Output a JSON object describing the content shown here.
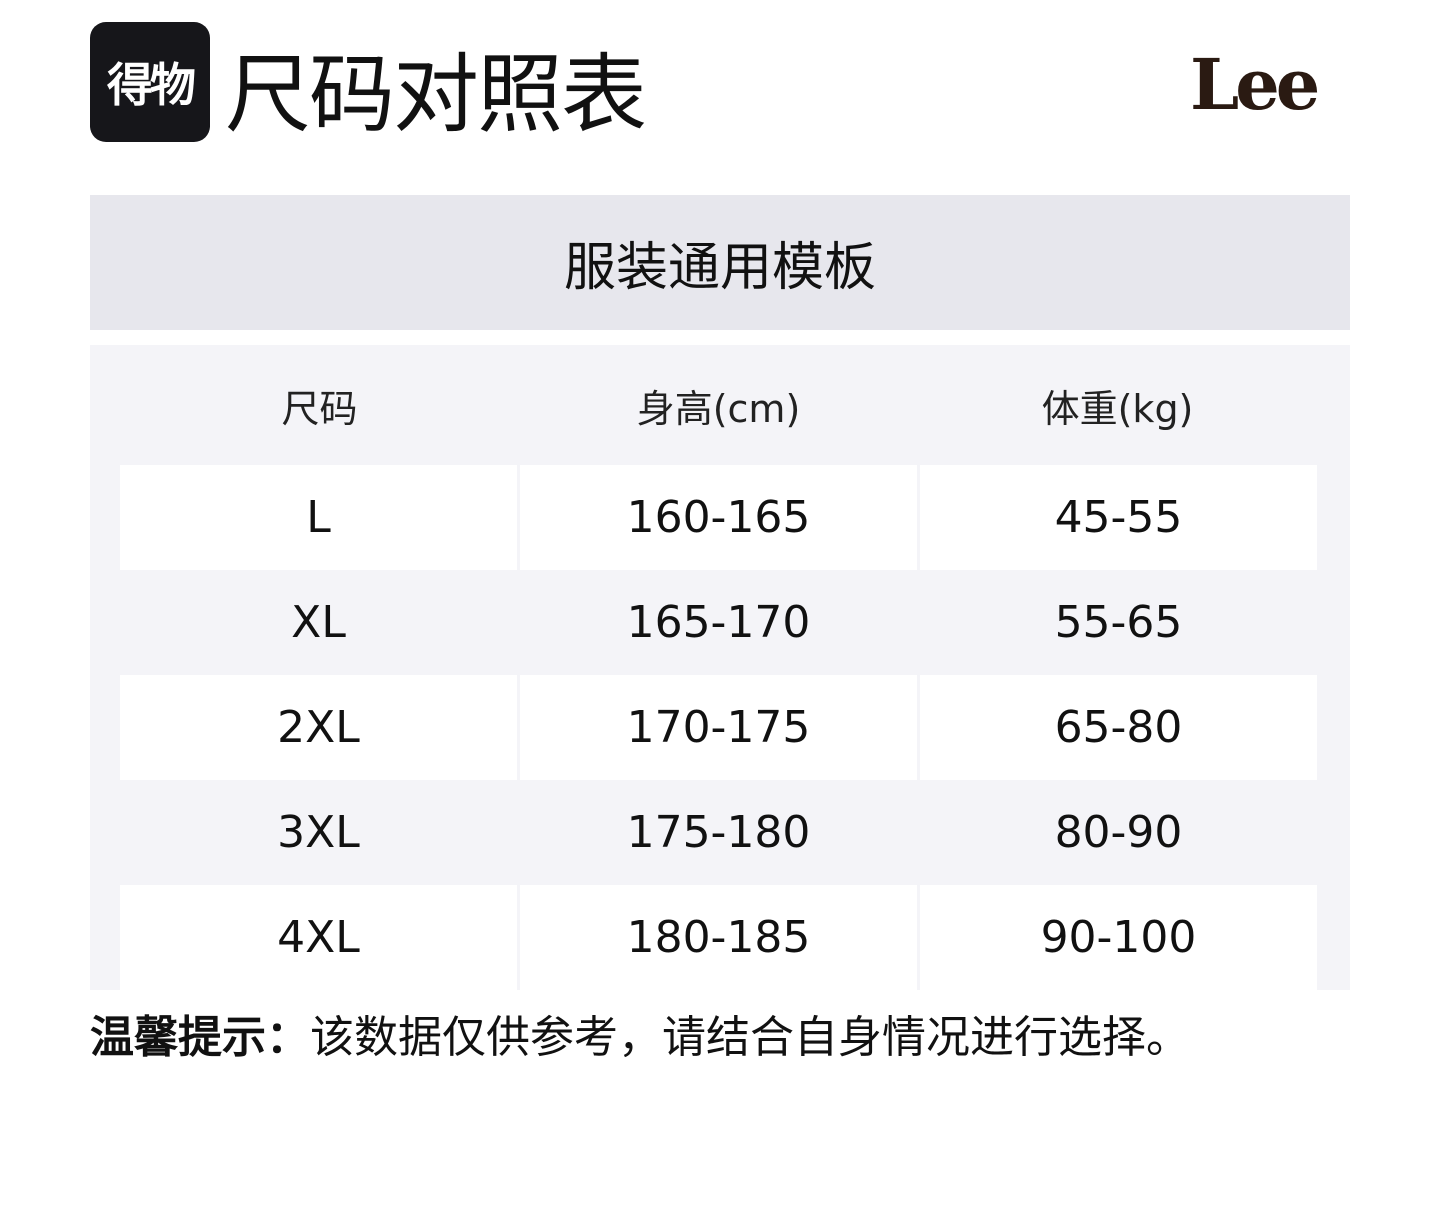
{
  "header": {
    "logo_text": "得物",
    "title": "尺码对照表",
    "brand": "Lee"
  },
  "band": {
    "label": "服装通用模板"
  },
  "table": {
    "columns": [
      "尺码",
      "身高(cm)",
      "体重(kg)"
    ],
    "rows": [
      [
        "L",
        "160-165",
        "45-55"
      ],
      [
        "XL",
        "165-170",
        "55-65"
      ],
      [
        "2XL",
        "170-175",
        "65-80"
      ],
      [
        "3XL",
        "175-180",
        "80-90"
      ],
      [
        "4XL",
        "180-185",
        "90-100"
      ]
    ]
  },
  "note": {
    "label": "温馨提示：",
    "text": "该数据仅供参考，请结合自身情况进行选择。"
  }
}
